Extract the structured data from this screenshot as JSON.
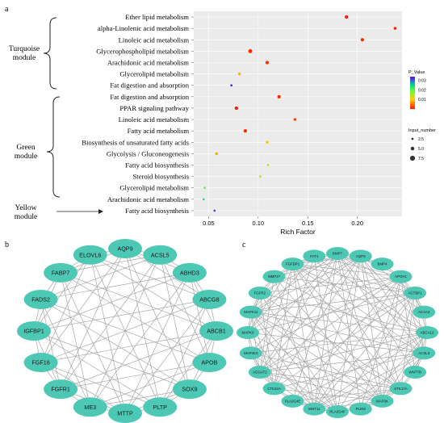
{
  "panel_labels": {
    "a": "a",
    "b": "b",
    "c": "c"
  },
  "modules": {
    "turquoise": "Turquoise\nmodule",
    "green": "Green\nmodule",
    "yellow": "Yellow\nmodule"
  },
  "colors": {
    "node_fill": "#4dc8b4",
    "edge": "#a8a8a8",
    "plot_bg": "#ebebeb",
    "grid": "#ffffff"
  },
  "chart_data": {
    "type": "scatter",
    "xlabel": "Rich Factor",
    "ylabel": "",
    "xlim": [
      0.035,
      0.245
    ],
    "x_ticks": [
      0.05,
      0.1,
      0.15,
      0.2
    ],
    "x_tick_labels": [
      "0.05",
      "0.10",
      "0.15",
      "0.20"
    ],
    "grid": true,
    "legend_position": "right",
    "color_legend": {
      "title": "P_Value",
      "ticks": [
        "0.03",
        "0.02",
        "0.01"
      ],
      "tick_values": [
        0.03,
        0.02,
        0.01
      ],
      "range": [
        0.0,
        0.034
      ],
      "colors": [
        "#ff1a00",
        "#ffcc00",
        "#66ff33",
        "#00d68f",
        "#6600ff"
      ]
    },
    "size_legend": {
      "title": "Input_number",
      "ticks": [
        "2.5",
        "5.0",
        "7.5"
      ],
      "tick_values": [
        2.5,
        5.0,
        7.5
      ]
    },
    "points": [
      {
        "term": "Ether lipid metabolism",
        "x": 0.189,
        "p": 0.0,
        "n": 4
      },
      {
        "term": "alpha-Linolenic acid metabolism",
        "x": 0.238,
        "p": 0.0,
        "n": 3
      },
      {
        "term": "Linoleic acid metabolism",
        "x": 0.205,
        "p": 0.001,
        "n": 4
      },
      {
        "term": "Glycerophospholipid metabolism",
        "x": 0.092,
        "p": 0.001,
        "n": 5
      },
      {
        "term": "Arachidonic acid metabolism",
        "x": 0.109,
        "p": 0.001,
        "n": 4
      },
      {
        "term": "Glycerolipid metabolism",
        "x": 0.081,
        "p": 0.009,
        "n": 3
      },
      {
        "term": "Fat digestion and absorption",
        "x": 0.073,
        "p": 0.033,
        "n": 2
      },
      {
        "term": "Fat digestion and absorption",
        "x": 0.121,
        "p": 0.001,
        "n": 4
      },
      {
        "term": "PPAR signaling pathway",
        "x": 0.078,
        "p": 0.0,
        "n": 4
      },
      {
        "term": "Linoleic acid metabolism",
        "x": 0.137,
        "p": 0.002,
        "n": 3
      },
      {
        "term": "Fatty acid metabolism",
        "x": 0.087,
        "p": 0.001,
        "n": 4
      },
      {
        "term": "Biosynthesis of unsaturated fatty acids",
        "x": 0.109,
        "p": 0.01,
        "n": 3
      },
      {
        "term": "Glycolysis / Gluconeogenesis",
        "x": 0.058,
        "p": 0.008,
        "n": 3
      },
      {
        "term": "Fatty acid biosynthesis",
        "x": 0.11,
        "p": 0.015,
        "n": 2
      },
      {
        "term": "Steroid biosynthesis",
        "x": 0.102,
        "p": 0.014,
        "n": 2
      },
      {
        "term": "Glycerolipid metabolism",
        "x": 0.046,
        "p": 0.02,
        "n": 2
      },
      {
        "term": "Arachidonic acid metabolism",
        "x": 0.045,
        "p": 0.024,
        "n": 2
      },
      {
        "term": "Fatty acid biosynthesis",
        "x": 0.056,
        "p": 0.031,
        "n": 2
      }
    ]
  },
  "network_b": {
    "nodes": [
      "AQP9",
      "ACSL5",
      "ABHD3",
      "ABCG8",
      "ABCB1",
      "APOB",
      "SOX9",
      "PLTP",
      "MTTP",
      "ME3",
      "FGFR1",
      "FGF16",
      "IGFBP1",
      "FADS2",
      "FABP7",
      "ELOVL6"
    ]
  },
  "network_c": {
    "nodes": [
      "BMP7",
      "AQP3",
      "BMP4",
      "APOA1",
      "ACTBP1",
      "ACAA2",
      "ABCA12",
      "ACSL3",
      "WNT7B",
      "STK17A",
      "MAP3K",
      "PLIN3",
      "PLA2G4F",
      "WNT11",
      "PLA2G4E",
      "CTK32A",
      "AGGAT2",
      "MAP4K4",
      "MAPK9",
      "MAPK11",
      "FGFR2",
      "MMP27",
      "FGFBP1",
      "FAT1"
    ]
  }
}
